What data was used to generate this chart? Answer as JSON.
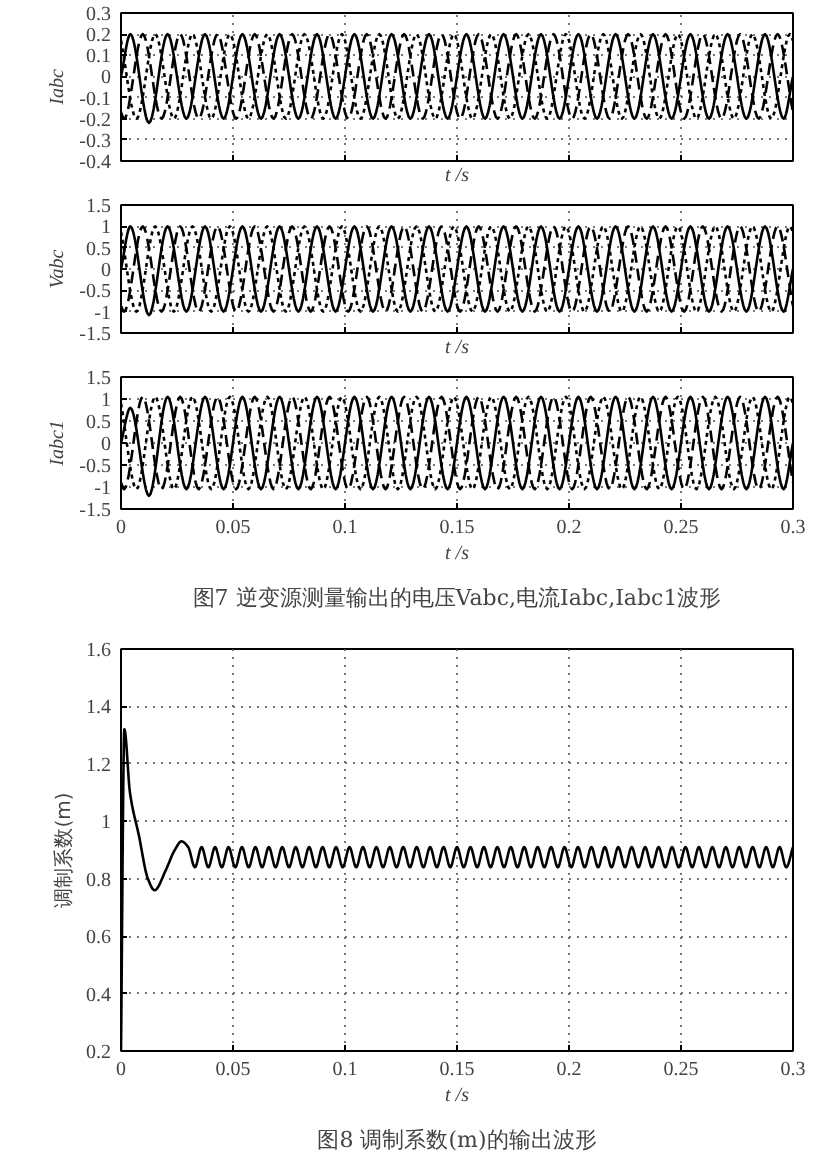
{
  "chart_data": [
    {
      "type": "line",
      "ylabel": "Iabc",
      "xlabel": "t /s",
      "xlim": [
        0,
        0.3
      ],
      "ylim": [
        -0.4,
        0.3
      ],
      "xticks": [
        0,
        0.05,
        0.1,
        0.15,
        0.2,
        0.25,
        0.3
      ],
      "yticks": [
        -0.4,
        -0.3,
        -0.2,
        -0.1,
        0,
        0.1,
        0.2,
        0.3
      ],
      "grid": true,
      "tick_labels": "y",
      "series": [
        {
          "color": "#000000",
          "line_style": "solid",
          "x": [
            0,
            0.0042,
            0.0125,
            0.0208,
            0.0292,
            0.0375,
            0.0458,
            0.0542,
            0.0625,
            0.0708,
            0.0792,
            0.0875,
            0.0958,
            0.1042,
            0.1125,
            0.1208,
            0.1292,
            0.1375,
            0.1458,
            0.1542,
            0.1625,
            0.1708,
            0.1792,
            0.1875,
            0.1958,
            0.2042,
            0.2125,
            0.2208,
            0.2292,
            0.2375,
            0.2458,
            0.2542,
            0.2625,
            0.2708,
            0.2792,
            0.2875,
            0.2958,
            0.3
          ],
          "values": [
            0,
            0.2,
            -0.22,
            0.2,
            -0.2,
            0.2,
            -0.2,
            0.2,
            -0.2,
            0.2,
            -0.2,
            0.2,
            -0.2,
            0.2,
            -0.2,
            0.2,
            -0.2,
            0.2,
            -0.2,
            0.2,
            -0.2,
            0.2,
            -0.2,
            0.2,
            -0.2,
            0.2,
            -0.2,
            0.2,
            -0.2,
            0.2,
            -0.2,
            0.2,
            -0.2,
            0.2,
            -0.2,
            0.2,
            -0.2,
            0
          ]
        },
        {
          "color": "#000000",
          "line_style": "dashed",
          "x": [
            0,
            0.0014,
            0.0097,
            0.0181,
            0.0264,
            0.0347,
            0.0431,
            0.0514,
            0.0597,
            0.0681,
            0.0764,
            0.0847,
            0.0931,
            0.1014,
            0.1097,
            0.1181,
            0.1264,
            0.1347,
            0.1431,
            0.1514,
            0.1597,
            0.1681,
            0.1764,
            0.1847,
            0.1931,
            0.2014,
            0.2097,
            0.2181,
            0.2264,
            0.2347,
            0.2431,
            0.2514,
            0.2597,
            0.2681,
            0.2764,
            0.2847,
            0.2931,
            0.3
          ],
          "values": [
            -0.17,
            -0.2,
            0.2,
            -0.2,
            0.2,
            -0.2,
            0.2,
            -0.2,
            0.2,
            -0.2,
            0.2,
            -0.2,
            0.2,
            -0.2,
            0.2,
            -0.2,
            0.2,
            -0.2,
            0.2,
            -0.2,
            0.2,
            -0.2,
            0.2,
            -0.2,
            0.2,
            -0.2,
            0.2,
            -0.2,
            0.2,
            -0.2,
            0.2,
            -0.2,
            0.2,
            -0.2,
            0.2,
            -0.2,
            0.2,
            -0.17
          ]
        },
        {
          "color": "#000000",
          "line_style": "dotted",
          "x": [
            0,
            0.0069,
            0.0153,
            0.0236,
            0.0319,
            0.0403,
            0.0486,
            0.0569,
            0.0653,
            0.0736,
            0.0819,
            0.0903,
            0.0986,
            0.1069,
            0.1153,
            0.1236,
            0.1319,
            0.1403,
            0.1486,
            0.1569,
            0.1653,
            0.1736,
            0.1819,
            0.1903,
            0.1986,
            0.2069,
            0.2153,
            0.2236,
            0.2319,
            0.2403,
            0.2486,
            0.2569,
            0.2653,
            0.2736,
            0.2819,
            0.2903,
            0.2986,
            0.3
          ],
          "values": [
            0.17,
            -0.2,
            0.2,
            -0.2,
            0.2,
            -0.2,
            0.2,
            -0.2,
            0.2,
            -0.2,
            0.2,
            -0.2,
            0.2,
            -0.2,
            0.2,
            -0.2,
            0.2,
            -0.2,
            0.2,
            -0.2,
            0.2,
            -0.2,
            0.2,
            -0.2,
            0.2,
            -0.2,
            0.2,
            -0.2,
            0.2,
            -0.2,
            0.2,
            -0.2,
            0.2,
            -0.2,
            0.2,
            -0.2,
            0.2,
            0.17
          ]
        }
      ]
    },
    {
      "type": "line",
      "ylabel": "Vabc",
      "xlabel": "t /s",
      "xlim": [
        0,
        0.3
      ],
      "ylim": [
        -1.5,
        1.5
      ],
      "xticks": [
        0,
        0.05,
        0.1,
        0.15,
        0.2,
        0.25,
        0.3
      ],
      "yticks": [
        -1.5,
        -1,
        -0.5,
        0,
        0.5,
        1,
        1.5
      ],
      "grid": true,
      "tick_labels": "y",
      "series": [
        {
          "color": "#000000",
          "line_style": "solid",
          "x": [
            0,
            0.0042,
            0.0125,
            0.0208,
            0.0292,
            0.0375,
            0.0458,
            0.0542,
            0.0625,
            0.0708,
            0.0792,
            0.0875,
            0.0958,
            0.1042,
            0.1125,
            0.1208,
            0.1292,
            0.1375,
            0.1458,
            0.1542,
            0.1625,
            0.1708,
            0.1792,
            0.1875,
            0.1958,
            0.2042,
            0.2125,
            0.2208,
            0.2292,
            0.2375,
            0.2458,
            0.2542,
            0.2625,
            0.2708,
            0.2792,
            0.2875,
            0.2958,
            0.3
          ],
          "values": [
            0,
            1,
            -1.08,
            1,
            -1,
            1,
            -1,
            1,
            -1,
            1,
            -1,
            1,
            -1,
            1,
            -1,
            1,
            -1,
            1,
            -1,
            1,
            -1,
            1,
            -1,
            1,
            -1,
            1,
            -1,
            1,
            -1,
            1,
            -1,
            1,
            -1,
            1,
            -1,
            1,
            -1,
            0
          ]
        },
        {
          "color": "#000000",
          "line_style": "dashed",
          "x": [
            0,
            0.0014,
            0.0097,
            0.0181,
            0.0264,
            0.0347,
            0.0431,
            0.0514,
            0.0597,
            0.0681,
            0.0764,
            0.0847,
            0.0931,
            0.1014,
            0.1097,
            0.1181,
            0.1264,
            0.1347,
            0.1431,
            0.1514,
            0.1597,
            0.1681,
            0.1764,
            0.1847,
            0.1931,
            0.2014,
            0.2097,
            0.2181,
            0.2264,
            0.2347,
            0.2431,
            0.2514,
            0.2597,
            0.2681,
            0.2764,
            0.2847,
            0.2931,
            0.3
          ],
          "values": [
            -0.87,
            -1,
            1,
            -1,
            1,
            -1,
            1,
            -1,
            1,
            -1,
            1,
            -1,
            1,
            -1,
            1,
            -1,
            1,
            -1,
            1,
            -1,
            1,
            -1,
            1,
            -1,
            1,
            -1,
            1,
            -1,
            1,
            -1,
            1,
            -1,
            1,
            -1,
            1,
            -1,
            1,
            -0.87
          ]
        },
        {
          "color": "#000000",
          "line_style": "dotted",
          "x": [
            0,
            0.0069,
            0.0153,
            0.0236,
            0.0319,
            0.0403,
            0.0486,
            0.0569,
            0.0653,
            0.0736,
            0.0819,
            0.0903,
            0.0986,
            0.1069,
            0.1153,
            0.1236,
            0.1319,
            0.1403,
            0.1486,
            0.1569,
            0.1653,
            0.1736,
            0.1819,
            0.1903,
            0.1986,
            0.2069,
            0.2153,
            0.2236,
            0.2319,
            0.2403,
            0.2486,
            0.2569,
            0.2653,
            0.2736,
            0.2819,
            0.2903,
            0.2986,
            0.3
          ],
          "values": [
            0.87,
            -1,
            1,
            -1,
            1,
            -1,
            1,
            -1,
            1,
            -1,
            1,
            -1,
            1,
            -1,
            1,
            -1,
            1,
            -1,
            1,
            -1,
            1,
            -1,
            1,
            -1,
            1,
            -1,
            1,
            -1,
            1,
            -1,
            1,
            -1,
            1,
            -1,
            1,
            -1,
            1,
            0.87
          ]
        }
      ]
    },
    {
      "type": "line",
      "title": "图7 逆变源测量输出的电压Vabc,电流Iabc,Iabc1波形",
      "ylabel": "Iabc1",
      "xlabel": "t /s",
      "xlim": [
        0,
        0.3
      ],
      "ylim": [
        -1.5,
        1.5
      ],
      "xticks": [
        0,
        0.05,
        0.1,
        0.15,
        0.2,
        0.25,
        0.3
      ],
      "yticks": [
        -1.5,
        -1,
        -0.5,
        0,
        0.5,
        1,
        1.5
      ],
      "grid": true,
      "series": [
        {
          "color": "#000000",
          "line_style": "solid",
          "x": [
            0,
            0.0042,
            0.0125,
            0.0208,
            0.0292,
            0.0375,
            0.0458,
            0.0542,
            0.0625,
            0.0708,
            0.0792,
            0.0875,
            0.0958,
            0.1042,
            0.1125,
            0.1208,
            0.1292,
            0.1375,
            0.1458,
            0.1542,
            0.1625,
            0.1708,
            0.1792,
            0.1875,
            0.1958,
            0.2042,
            0.2125,
            0.2208,
            0.2292,
            0.2375,
            0.2458,
            0.2542,
            0.2625,
            0.2708,
            0.2792,
            0.2875,
            0.2958,
            0.3
          ],
          "values": [
            0,
            0.8,
            -1.2,
            1.05,
            -1.05,
            1.05,
            -1.05,
            1.05,
            -1.05,
            1.05,
            -1.05,
            1.05,
            -1.05,
            1.05,
            -1.05,
            1.05,
            -1.05,
            1.05,
            -1.05,
            1.05,
            -1.05,
            1.05,
            -1.05,
            1.05,
            -1.05,
            1.05,
            -1.05,
            1.05,
            -1.05,
            1.05,
            -1.05,
            1.05,
            -1.05,
            1.05,
            -1.05,
            1.05,
            -1.05,
            0
          ]
        },
        {
          "color": "#000000",
          "line_style": "dashed",
          "x": [
            0,
            0.0014,
            0.0097,
            0.0181,
            0.0264,
            0.0347,
            0.0431,
            0.0514,
            0.0597,
            0.0681,
            0.0764,
            0.0847,
            0.0931,
            0.1014,
            0.1097,
            0.1181,
            0.1264,
            0.1347,
            0.1431,
            0.1514,
            0.1597,
            0.1681,
            0.1764,
            0.1847,
            0.1931,
            0.2014,
            0.2097,
            0.2181,
            0.2264,
            0.2347,
            0.2431,
            0.2514,
            0.2597,
            0.2681,
            0.2764,
            0.2847,
            0.2931,
            0.3
          ],
          "values": [
            -0.9,
            -1.05,
            1.05,
            -1.05,
            1.05,
            -1.05,
            1.05,
            -1.05,
            1.05,
            -1.05,
            1.05,
            -1.05,
            1.05,
            -1.05,
            1.05,
            -1.05,
            1.05,
            -1.05,
            1.05,
            -1.05,
            1.05,
            -1.05,
            1.05,
            -1.05,
            1.05,
            -1.05,
            1.05,
            -1.05,
            1.05,
            -1.05,
            1.05,
            -1.05,
            1.05,
            -1.05,
            1.05,
            -1.05,
            1.05,
            -0.9
          ]
        },
        {
          "color": "#000000",
          "line_style": "dotted",
          "x": [
            0,
            0.0069,
            0.0153,
            0.0236,
            0.0319,
            0.0403,
            0.0486,
            0.0569,
            0.0653,
            0.0736,
            0.0819,
            0.0903,
            0.0986,
            0.1069,
            0.1153,
            0.1236,
            0.1319,
            0.1403,
            0.1486,
            0.1569,
            0.1653,
            0.1736,
            0.1819,
            0.1903,
            0.1986,
            0.2069,
            0.2153,
            0.2236,
            0.2319,
            0.2403,
            0.2486,
            0.2569,
            0.2653,
            0.2736,
            0.2819,
            0.2903,
            0.2986,
            0.3
          ],
          "values": [
            0.9,
            -1.05,
            1.05,
            -1.05,
            1.05,
            -1.05,
            1.05,
            -1.05,
            1.05,
            -1.05,
            1.05,
            -1.05,
            1.05,
            -1.05,
            1.05,
            -1.05,
            1.05,
            -1.05,
            1.05,
            -1.05,
            1.05,
            -1.05,
            1.05,
            -1.05,
            1.05,
            -1.05,
            1.05,
            -1.05,
            1.05,
            -1.05,
            1.05,
            -1.05,
            1.05,
            -1.05,
            1.05,
            -1.05,
            1.05,
            0.9
          ]
        }
      ]
    },
    {
      "type": "line",
      "title": "图8 调制系数(m)的输出波形",
      "ylabel": "调制系数(m)",
      "xlabel": "t /s",
      "xlim": [
        0,
        0.3
      ],
      "ylim": [
        0.2,
        1.6
      ],
      "xticks": [
        0,
        0.05,
        0.1,
        0.15,
        0.2,
        0.25,
        0.3
      ],
      "yticks": [
        0.2,
        0.4,
        0.6,
        0.8,
        1,
        1.2,
        1.4,
        1.6
      ],
      "grid": true,
      "series": [
        {
          "color": "#000000",
          "line_style": "solid",
          "x": [
            0,
            0.0015,
            0.004,
            0.008,
            0.012,
            0.015,
            0.02,
            0.024,
            0.027,
            0.03,
            0.033,
            0.036,
            0.039,
            0.042,
            0.045,
            0.048,
            0.051,
            0.054,
            0.057,
            0.06,
            0.063,
            0.066,
            0.069,
            0.072,
            0.075,
            0.078,
            0.081,
            0.084,
            0.087,
            0.09,
            0.093,
            0.096,
            0.099,
            0.102,
            0.105,
            0.108,
            0.111,
            0.114,
            0.117,
            0.12,
            0.123,
            0.126,
            0.129,
            0.132,
            0.135,
            0.138,
            0.141,
            0.144,
            0.147,
            0.15,
            0.153,
            0.156,
            0.159,
            0.162,
            0.165,
            0.168,
            0.171,
            0.174,
            0.177,
            0.18,
            0.183,
            0.186,
            0.189,
            0.192,
            0.195,
            0.198,
            0.201,
            0.204,
            0.207,
            0.21,
            0.213,
            0.216,
            0.219,
            0.222,
            0.225,
            0.228,
            0.231,
            0.234,
            0.237,
            0.24,
            0.243,
            0.246,
            0.249,
            0.252,
            0.255,
            0.258,
            0.261,
            0.264,
            0.267,
            0.27,
            0.273,
            0.276,
            0.279,
            0.282,
            0.285,
            0.288,
            0.291,
            0.294,
            0.297,
            0.3
          ],
          "values": [
            0.2,
            1.32,
            1.1,
            0.95,
            0.8,
            0.76,
            0.83,
            0.9,
            0.93,
            0.91,
            0.84,
            0.91,
            0.84,
            0.91,
            0.84,
            0.91,
            0.84,
            0.91,
            0.84,
            0.91,
            0.84,
            0.91,
            0.84,
            0.91,
            0.84,
            0.91,
            0.84,
            0.91,
            0.84,
            0.91,
            0.84,
            0.91,
            0.84,
            0.91,
            0.84,
            0.91,
            0.84,
            0.91,
            0.84,
            0.91,
            0.84,
            0.91,
            0.84,
            0.91,
            0.84,
            0.91,
            0.84,
            0.91,
            0.84,
            0.91,
            0.84,
            0.91,
            0.84,
            0.91,
            0.84,
            0.91,
            0.84,
            0.91,
            0.84,
            0.91,
            0.84,
            0.91,
            0.84,
            0.91,
            0.84,
            0.91,
            0.84,
            0.91,
            0.84,
            0.91,
            0.84,
            0.91,
            0.84,
            0.91,
            0.84,
            0.91,
            0.84,
            0.91,
            0.84,
            0.91,
            0.84,
            0.91,
            0.84,
            0.91,
            0.84,
            0.91,
            0.84,
            0.91,
            0.84,
            0.91,
            0.84,
            0.91,
            0.84,
            0.91,
            0.84,
            0.91,
            0.84,
            0.91,
            0.84,
            0.91
          ]
        }
      ]
    }
  ]
}
